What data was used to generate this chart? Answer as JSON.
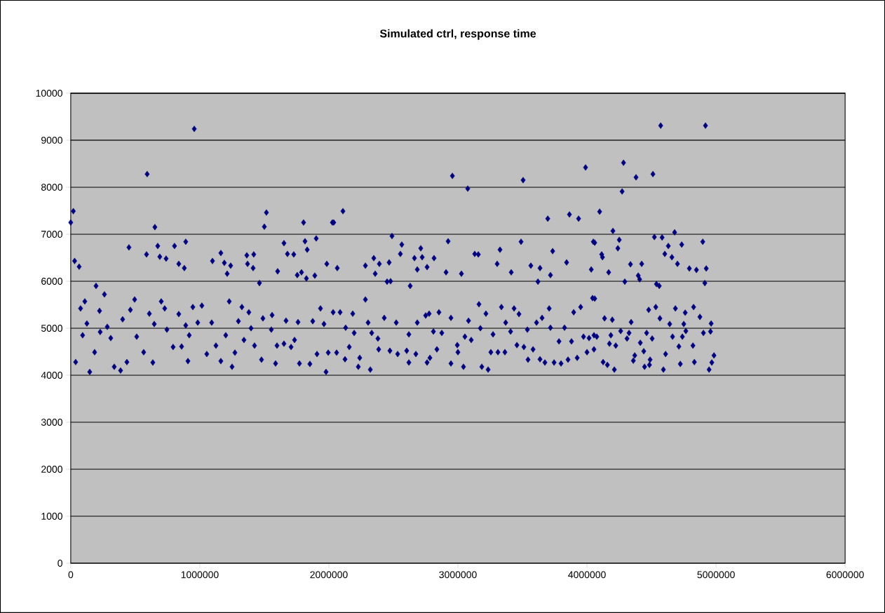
{
  "chart_data": {
    "type": "scatter",
    "title": "Simulated ctrl, response time",
    "xlim": [
      0,
      6000000
    ],
    "xticks": [
      0,
      1000000,
      2000000,
      3000000,
      4000000,
      5000000,
      6000000
    ],
    "ylim": [
      0,
      10000
    ],
    "yticks": [
      0,
      1000,
      2000,
      3000,
      4000,
      5000,
      6000,
      7000,
      8000,
      9000,
      10000
    ],
    "grid": "y",
    "marker": "diamond",
    "series": [
      {
        "color": "#000080",
        "x": [
          0,
          20000,
          30000,
          65000,
          76000,
          38000,
          92000,
          109000,
          125000,
          147000,
          185000,
          196000,
          223000,
          228000,
          261000,
          283000,
          310000,
          337000,
          386000,
          402000,
          435000,
          451000,
          462000,
          495000,
          511000,
          565000,
          587000,
          592000,
          609000,
          636000,
          647000,
          652000,
          674000,
          690000,
          701000,
          728000,
          739000,
          745000,
          793000,
          804000,
          837000,
          837000,
          859000,
          880000,
          891000,
          891000,
          908000,
          918000,
          946000,
          957000,
          984000,
          1016000,
          1054000,
          1092000,
          1098000,
          1125000,
          1163000,
          1163000,
          1190000,
          1201000,
          1212000,
          1228000,
          1239000,
          1250000,
          1272000,
          1299000,
          1326000,
          1342000,
          1364000,
          1370000,
          1380000,
          1397000,
          1413000,
          1418000,
          1424000,
          1462000,
          1478000,
          1489000,
          1500000,
          1516000,
          1554000,
          1560000,
          1587000,
          1598000,
          1603000,
          1652000,
          1652000,
          1668000,
          1679000,
          1707000,
          1728000,
          1734000,
          1755000,
          1761000,
          1772000,
          1788000,
          1804000,
          1815000,
          1826000,
          1832000,
          1853000,
          1875000,
          1891000,
          1902000,
          1908000,
          1935000,
          1962000,
          1978000,
          1984000,
          1995000,
          2027000,
          2033000,
          2038000,
          2060000,
          2065000,
          2087000,
          2109000,
          2125000,
          2130000,
          2158000,
          2185000,
          2196000,
          2228000,
          2239000,
          2283000,
          2283000,
          2304000,
          2321000,
          2332000,
          2348000,
          2359000,
          2380000,
          2386000,
          2391000,
          2429000,
          2451000,
          2467000,
          2473000,
          2478000,
          2489000,
          2522000,
          2533000,
          2554000,
          2565000,
          2603000,
          2620000,
          2620000,
          2630000,
          2663000,
          2674000,
          2685000,
          2685000,
          2712000,
          2723000,
          2750000,
          2761000,
          2761000,
          2777000,
          2783000,
          2810000,
          2815000,
          2837000,
          2853000,
          2875000,
          2908000,
          2924000,
          2946000,
          2946000,
          2957000,
          2995000,
          3000000,
          3027000,
          3043000,
          3054000,
          3076000,
          3082000,
          3103000,
          3130000,
          3158000,
          3163000,
          3174000,
          3185000,
          3217000,
          3234000,
          3255000,
          3272000,
          3304000,
          3310000,
          3326000,
          3337000,
          3364000,
          3370000,
          3408000,
          3413000,
          3435000,
          3457000,
          3473000,
          3489000,
          3505000,
          3511000,
          3538000,
          3543000,
          3565000,
          3582000,
          3609000,
          3620000,
          3636000,
          3636000,
          3652000,
          3674000,
          3696000,
          3707000,
          3717000,
          3717000,
          3734000,
          3745000,
          3783000,
          3799000,
          3826000,
          3842000,
          3853000,
          3864000,
          3880000,
          3897000,
          3924000,
          3935000,
          3951000,
          3973000,
          3989000,
          4000000,
          4016000,
          4033000,
          4043000,
          4049000,
          4054000,
          4054000,
          4060000,
          4060000,
          4076000,
          4098000,
          4114000,
          4120000,
          4125000,
          4136000,
          4158000,
          4168000,
          4174000,
          4185000,
          4196000,
          4201000,
          4212000,
          4223000,
          4239000,
          4250000,
          4261000,
          4272000,
          4283000,
          4293000,
          4310000,
          4326000,
          4337000,
          4342000,
          4359000,
          4370000,
          4380000,
          4397000,
          4408000,
          4413000,
          4424000,
          4440000,
          4446000,
          4462000,
          4478000,
          4484000,
          4489000,
          4505000,
          4511000,
          4522000,
          4533000,
          4538000,
          4560000,
          4565000,
          4571000,
          4582000,
          4592000,
          4603000,
          4609000,
          4630000,
          4641000,
          4658000,
          4663000,
          4679000,
          4685000,
          4701000,
          4712000,
          4723000,
          4734000,
          4739000,
          4750000,
          4761000,
          4766000,
          4793000,
          4821000,
          4826000,
          4832000,
          4848000,
          4875000,
          4897000,
          4902000,
          4913000,
          4918000,
          4924000,
          4946000,
          4957000,
          4962000,
          4967000,
          4984000
        ],
        "values": [
          7250,
          7490,
          6430,
          6310,
          5420,
          4280,
          4850,
          5570,
          5100,
          4070,
          4490,
          5900,
          5370,
          4920,
          5720,
          5030,
          4790,
          4180,
          4100,
          5190,
          4280,
          6720,
          5390,
          5610,
          4820,
          4490,
          6570,
          8280,
          5310,
          4270,
          5090,
          7150,
          6750,
          6520,
          5570,
          5420,
          6480,
          4970,
          4600,
          6750,
          5300,
          6370,
          4610,
          6280,
          6840,
          5060,
          4300,
          4850,
          5450,
          9240,
          5120,
          5480,
          4450,
          5120,
          6430,
          4630,
          4300,
          6600,
          6390,
          4850,
          6160,
          5570,
          6330,
          4180,
          4480,
          5150,
          5450,
          4750,
          6550,
          6370,
          5340,
          5000,
          6280,
          6570,
          4630,
          5960,
          4330,
          5210,
          7160,
          7460,
          4970,
          5280,
          4250,
          4630,
          6210,
          4670,
          6810,
          5160,
          6580,
          4600,
          6570,
          4750,
          6130,
          5130,
          4250,
          6190,
          7250,
          6850,
          6060,
          6670,
          4240,
          5150,
          6120,
          6910,
          4450,
          5420,
          5090,
          4070,
          6370,
          4480,
          7250,
          5340,
          7250,
          4480,
          6280,
          5340,
          7490,
          4340,
          5010,
          4600,
          5310,
          4900,
          4180,
          4370,
          5610,
          6330,
          5120,
          4120,
          4900,
          6490,
          6160,
          4780,
          4550,
          6370,
          5220,
          5990,
          6400,
          4520,
          6000,
          6960,
          5120,
          4450,
          6580,
          6780,
          4520,
          4870,
          4270,
          5900,
          6490,
          4450,
          6250,
          5120,
          6700,
          6510,
          5270,
          4270,
          6300,
          5310,
          4370,
          4930,
          6490,
          4550,
          5340,
          4900,
          6190,
          6850,
          5220,
          4250,
          8240,
          4640,
          4490,
          6160,
          4180,
          4820,
          7970,
          5160,
          4750,
          6580,
          6570,
          5510,
          5000,
          4180,
          5310,
          4120,
          4490,
          4870,
          6370,
          4490,
          6670,
          5450,
          4490,
          5120,
          4930,
          6190,
          5420,
          4640,
          5300,
          6840,
          8150,
          4600,
          4970,
          4330,
          6330,
          4550,
          5120,
          5990,
          4340,
          6280,
          5220,
          4270,
          7330,
          5420,
          5010,
          6130,
          6640,
          4270,
          4720,
          4250,
          5010,
          6400,
          4330,
          7420,
          4720,
          5340,
          4370,
          7330,
          5450,
          4820,
          8420,
          4490,
          4790,
          6250,
          5640,
          6840,
          4850,
          4550,
          6820,
          5630,
          4820,
          7480,
          6570,
          6510,
          4280,
          5210,
          4220,
          6190,
          4670,
          4850,
          5180,
          7070,
          4120,
          4630,
          6700,
          6880,
          4940,
          7910,
          8520,
          5990,
          4780,
          4900,
          6360,
          5130,
          4310,
          4420,
          8210,
          6120,
          6040,
          4690,
          6370,
          4510,
          4180,
          4900,
          5390,
          4220,
          4330,
          4780,
          8280,
          6940,
          5450,
          5940,
          5900,
          5210,
          9310,
          6930,
          4120,
          6580,
          4450,
          6750,
          5090,
          6510,
          4820,
          7040,
          5420,
          6370,
          4610,
          4240,
          6780,
          4820,
          5090,
          5330,
          4940,
          6270,
          4630,
          5450,
          4280,
          6240,
          5240,
          6840,
          4900,
          5960,
          9310,
          6270,
          4120,
          4930,
          5100,
          4270,
          4420
        ]
      }
    ]
  }
}
